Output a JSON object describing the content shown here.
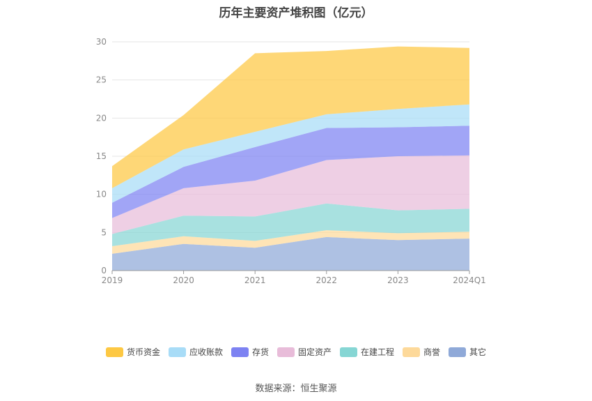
{
  "chart_data": {
    "type": "area",
    "stacked": true,
    "title": "历年主要资产堆积图（亿元）",
    "categories": [
      "2019",
      "2020",
      "2021",
      "2022",
      "2023",
      "2024Q1"
    ],
    "ylim": [
      0,
      30
    ],
    "yticks": [
      "0",
      "5",
      "10",
      "15",
      "20",
      "25",
      "30"
    ],
    "grid": true,
    "legend_position": "bottom",
    "series": [
      {
        "name": "其它",
        "color": "#8fa9d8",
        "values": [
          2.2,
          3.5,
          3.0,
          4.4,
          4.0,
          4.2
        ]
      },
      {
        "name": "商誉",
        "color": "#fdd99a",
        "values": [
          1.0,
          1.0,
          0.9,
          0.9,
          0.9,
          0.9
        ]
      },
      {
        "name": "在建工程",
        "color": "#86d6d4",
        "values": [
          1.6,
          2.7,
          3.2,
          3.5,
          3.0,
          3.0
        ]
      },
      {
        "name": "固定资产",
        "color": "#e8bcd9",
        "values": [
          2.1,
          3.6,
          4.7,
          5.7,
          7.1,
          7.0
        ]
      },
      {
        "name": "存货",
        "color": "#7d82f2",
        "values": [
          2.0,
          2.8,
          4.4,
          4.2,
          3.8,
          3.9
        ]
      },
      {
        "name": "应收账款",
        "color": "#a8dcf7",
        "values": [
          1.9,
          2.3,
          2.0,
          1.8,
          2.4,
          2.8
        ]
      },
      {
        "name": "货币资金",
        "color": "#fdc843",
        "values": [
          2.9,
          4.5,
          10.3,
          8.3,
          8.2,
          7.4
        ]
      }
    ],
    "legend_order": [
      "货币资金",
      "应收账款",
      "存货",
      "固定资产",
      "在建工程",
      "商誉",
      "其它"
    ]
  },
  "source_text": "数据来源：恒生聚源"
}
